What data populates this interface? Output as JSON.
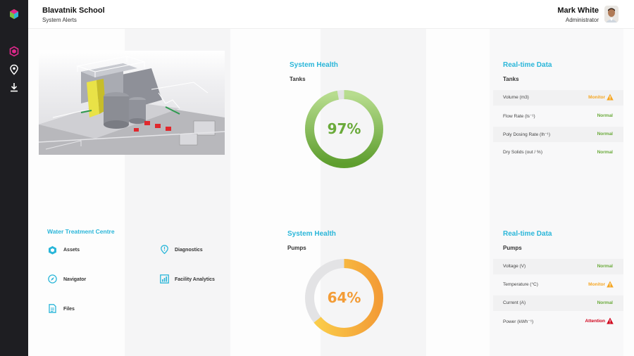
{
  "header": {
    "title": "Blavatnik School",
    "subtitle": "System Alerts",
    "user_name": "Mark White",
    "user_role": "Administrator"
  },
  "sidebar": {
    "items": [
      {
        "icon": "hexagon-icon",
        "active": true
      },
      {
        "icon": "map-pin-icon",
        "active": false
      },
      {
        "icon": "download-icon",
        "active": false
      }
    ]
  },
  "tanks_health": {
    "title": "System Health",
    "subtitle": "Tanks",
    "value": 97,
    "value_label": "97%",
    "color": "#6aaa3a"
  },
  "pumps_health": {
    "title": "System Health",
    "subtitle": "Pumps",
    "value": 64,
    "value_label": "64%",
    "color": "#f39c36"
  },
  "tanks_data": {
    "title": "Real-time Data",
    "subtitle": "Tanks",
    "rows": [
      {
        "label": "Volume (m3)",
        "status": "Monitor",
        "level": "monitor"
      },
      {
        "label": "Flow Rate (ls⁻¹)",
        "status": "Normal",
        "level": "normal"
      },
      {
        "label": "Poly Dosing Rate (lh⁻¹)",
        "status": "Normal",
        "level": "normal"
      },
      {
        "label": "Dry Solids (out / %)",
        "status": "Normal",
        "level": "normal"
      }
    ]
  },
  "pumps_data": {
    "title": "Real-time Data",
    "subtitle": "Pumps",
    "rows": [
      {
        "label": "Voltage (V)",
        "status": "Normal",
        "level": "normal"
      },
      {
        "label": "Temperature (°C)",
        "status": "Monitor",
        "level": "monitor"
      },
      {
        "label": "Current (A)",
        "status": "Normal",
        "level": "normal"
      },
      {
        "label": "Power (kWh⁻¹)",
        "status": "Attention",
        "level": "attention"
      }
    ]
  },
  "quick_links": {
    "title": "Water Treatment Centre",
    "items": [
      {
        "label": "Assets",
        "icon": "cube-icon"
      },
      {
        "label": "Diagnostics",
        "icon": "alert-pin-icon"
      },
      {
        "label": "Navigator",
        "icon": "compass-icon"
      },
      {
        "label": "Facility Analytics",
        "icon": "analytics-icon"
      },
      {
        "label": "Files",
        "icon": "file-icon"
      }
    ]
  },
  "colors": {
    "accent": "#2ab6d9",
    "sidebar": "#1e1e22",
    "active_icon": "#e0288c",
    "normal": "#6aaa3a",
    "monitor": "#f5a623",
    "attention": "#d0021b"
  }
}
